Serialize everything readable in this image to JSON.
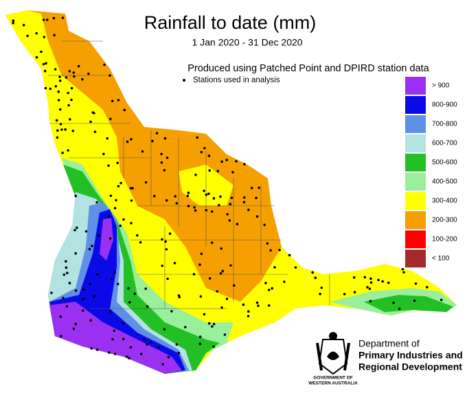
{
  "header": {
    "title": "Rainfall to date (mm)",
    "subtitle": "1 Jan 2020 - 31 Dec 2020",
    "note": "Produced using Patched Point and DPIRD station data"
  },
  "legend": {
    "stations_label": "Stations used in analysis",
    "items": [
      {
        "label": "> 900",
        "color": "#9b30f0"
      },
      {
        "label": "800-900",
        "color": "#0a0ae8"
      },
      {
        "label": "700-800",
        "color": "#5e90e6"
      },
      {
        "label": "600-700",
        "color": "#b2e2e2"
      },
      {
        "label": "500-600",
        "color": "#22c024"
      },
      {
        "label": "400-500",
        "color": "#9af09a"
      },
      {
        "label": "300-400",
        "color": "#ffff00"
      },
      {
        "label": "200-300",
        "color": "#f5a000"
      },
      {
        "label": "100-200",
        "color": "#ff0000"
      },
      {
        "label": "< 100",
        "color": "#a52a2a"
      }
    ]
  },
  "logo": {
    "line1": "Department of",
    "line2": "Primary Industries and",
    "line3": "Regional Development",
    "crest1": "GOVERNMENT OF",
    "crest2": "WESTERN AUSTRALIA"
  }
}
